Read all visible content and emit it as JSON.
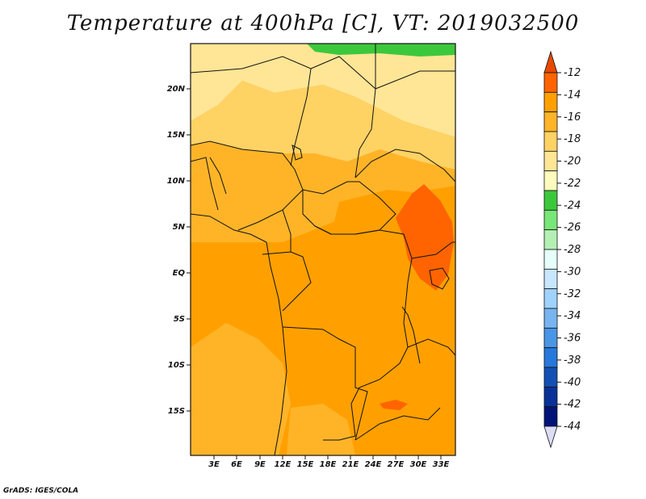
{
  "title": "Temperature at 400hPa [C], VT: 2019032500",
  "credit": "GrADS: IGES/COLA",
  "map": {
    "latitude_labels": [
      "20N",
      "15N",
      "10N",
      "5N",
      "EQ",
      "5S",
      "10S",
      "15S"
    ],
    "longitude_labels": [
      "3E",
      "6E",
      "9E",
      "12E",
      "15E",
      "18E",
      "21E",
      "24E",
      "27E",
      "30E",
      "33E"
    ],
    "fill_colors": {
      "warmest": "#ff6400",
      "warm": "#ffa000",
      "mid": "#ffb428",
      "cool": "#ffd264",
      "coolest": "#ffe696",
      "green": "#3cc83c"
    }
  },
  "colorbar": {
    "levels": [
      "-12",
      "-14",
      "-16",
      "-18",
      "-20",
      "-22",
      "-24",
      "-26",
      "-28",
      "-30",
      "-32",
      "-34",
      "-36",
      "-38",
      "-40",
      "-42",
      "-44"
    ],
    "colors": [
      "#e64a00",
      "#ff6400",
      "#ffa000",
      "#ffb428",
      "#ffd264",
      "#ffe696",
      "#fffabe",
      "#3cc83c",
      "#78e678",
      "#b4f0b4",
      "#e6fffa",
      "#c8e6ff",
      "#a0d2ff",
      "#78b4f0",
      "#4a96e6",
      "#2878dc",
      "#1450b4",
      "#0a3296",
      "#001478",
      "#dcdcf5"
    ]
  }
}
